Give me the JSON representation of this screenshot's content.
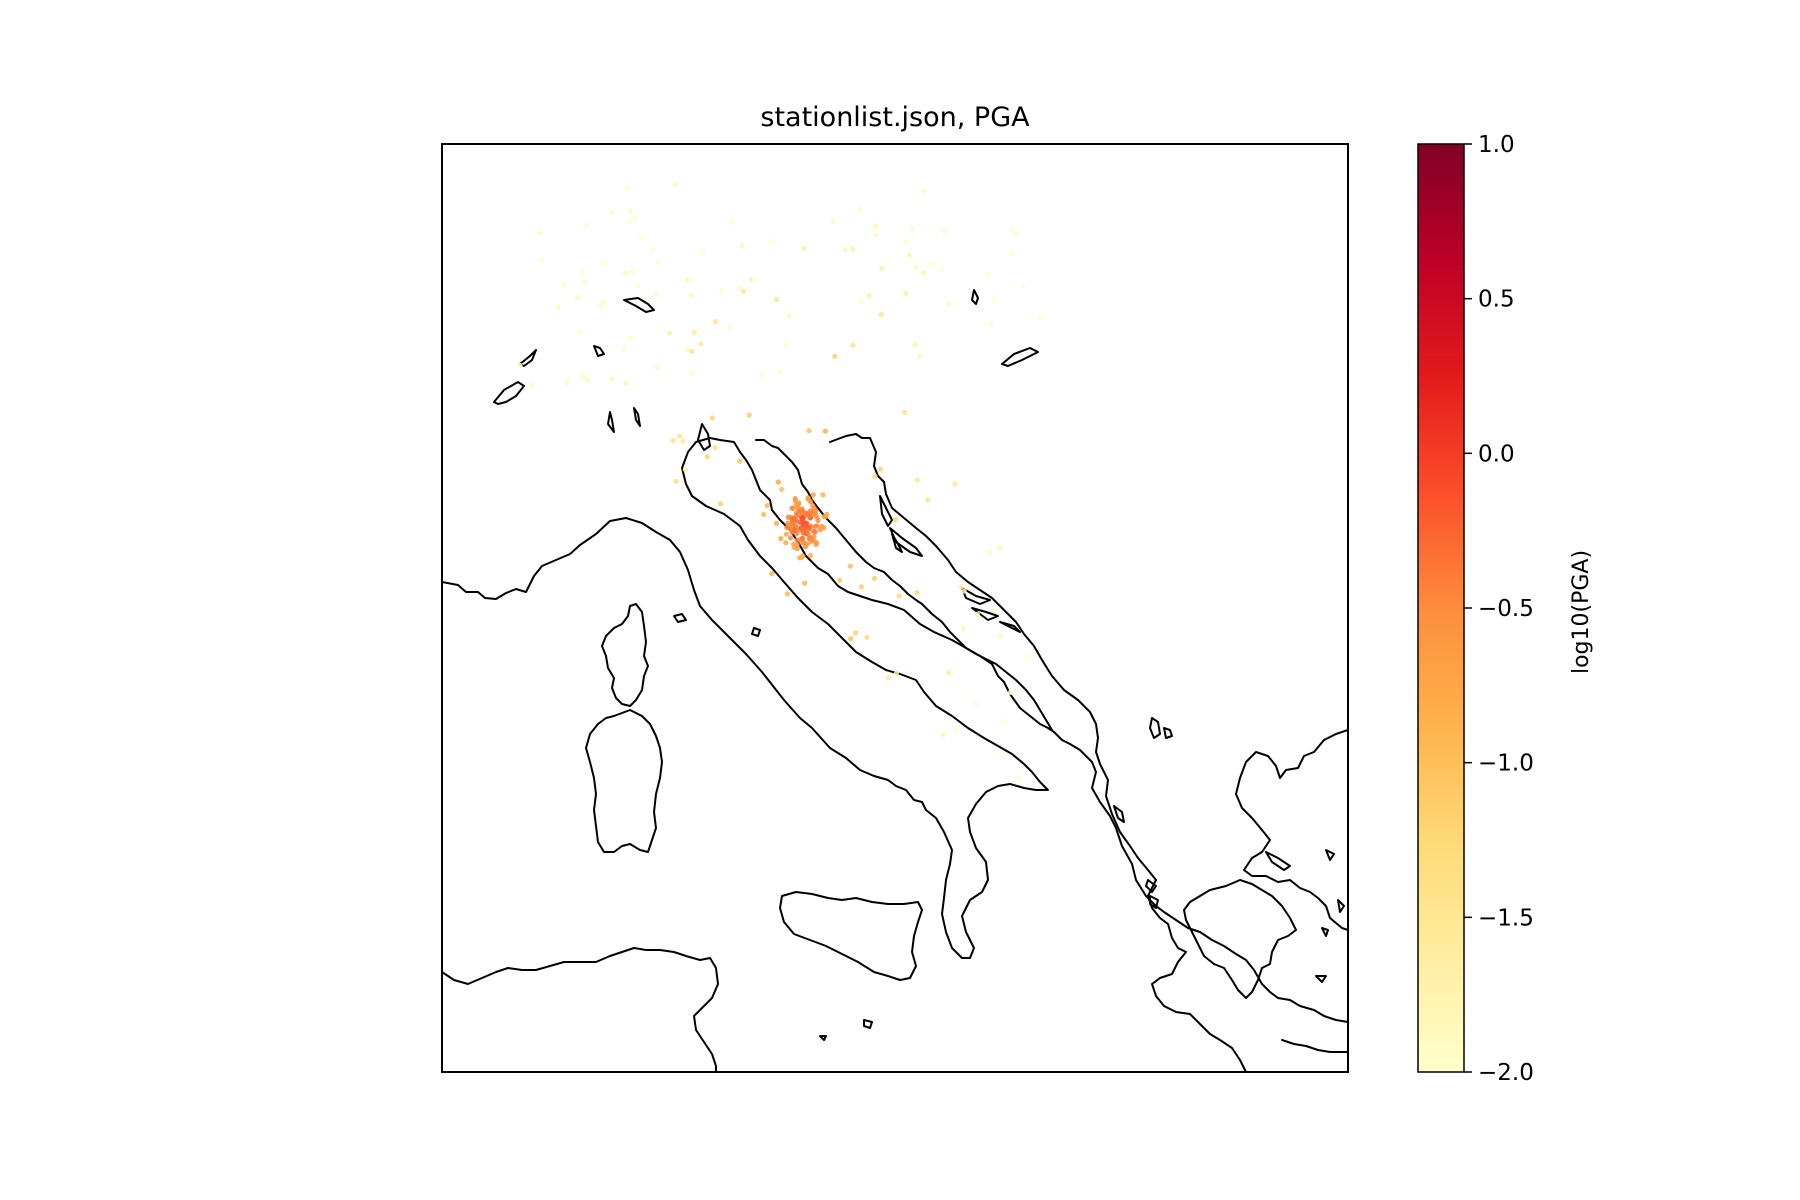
{
  "figure": {
    "title": "stationlist.json, PGA"
  },
  "chart_data": {
    "type": "scatter",
    "map_type": "station map",
    "title": "stationlist.json, PGA",
    "projection_extent": {
      "lon": [
        6,
        24
      ],
      "lat": [
        36,
        47.5
      ]
    },
    "colorbar": {
      "label": "log10(PGA)",
      "colormap": "YlOrRd",
      "vmin": -2.0,
      "vmax": 1.0,
      "ticks": [
        1.0,
        0.5,
        0.0,
        -0.5,
        -1.0,
        -1.5,
        -2.0
      ],
      "tick_labels": [
        "1.0",
        "0.5",
        "0.0",
        "−0.5",
        "−1.0",
        "−1.5",
        "−2.0"
      ],
      "colors": [
        "#ffffcc",
        "#ffeda0",
        "#fed976",
        "#feb24c",
        "#fd8d3c",
        "#fc4e2a",
        "#e31a1c",
        "#bd0026",
        "#800026"
      ]
    },
    "epicenter_region": {
      "lon": 13.2,
      "lat": 42.8
    },
    "station_count_estimate": 260
  }
}
